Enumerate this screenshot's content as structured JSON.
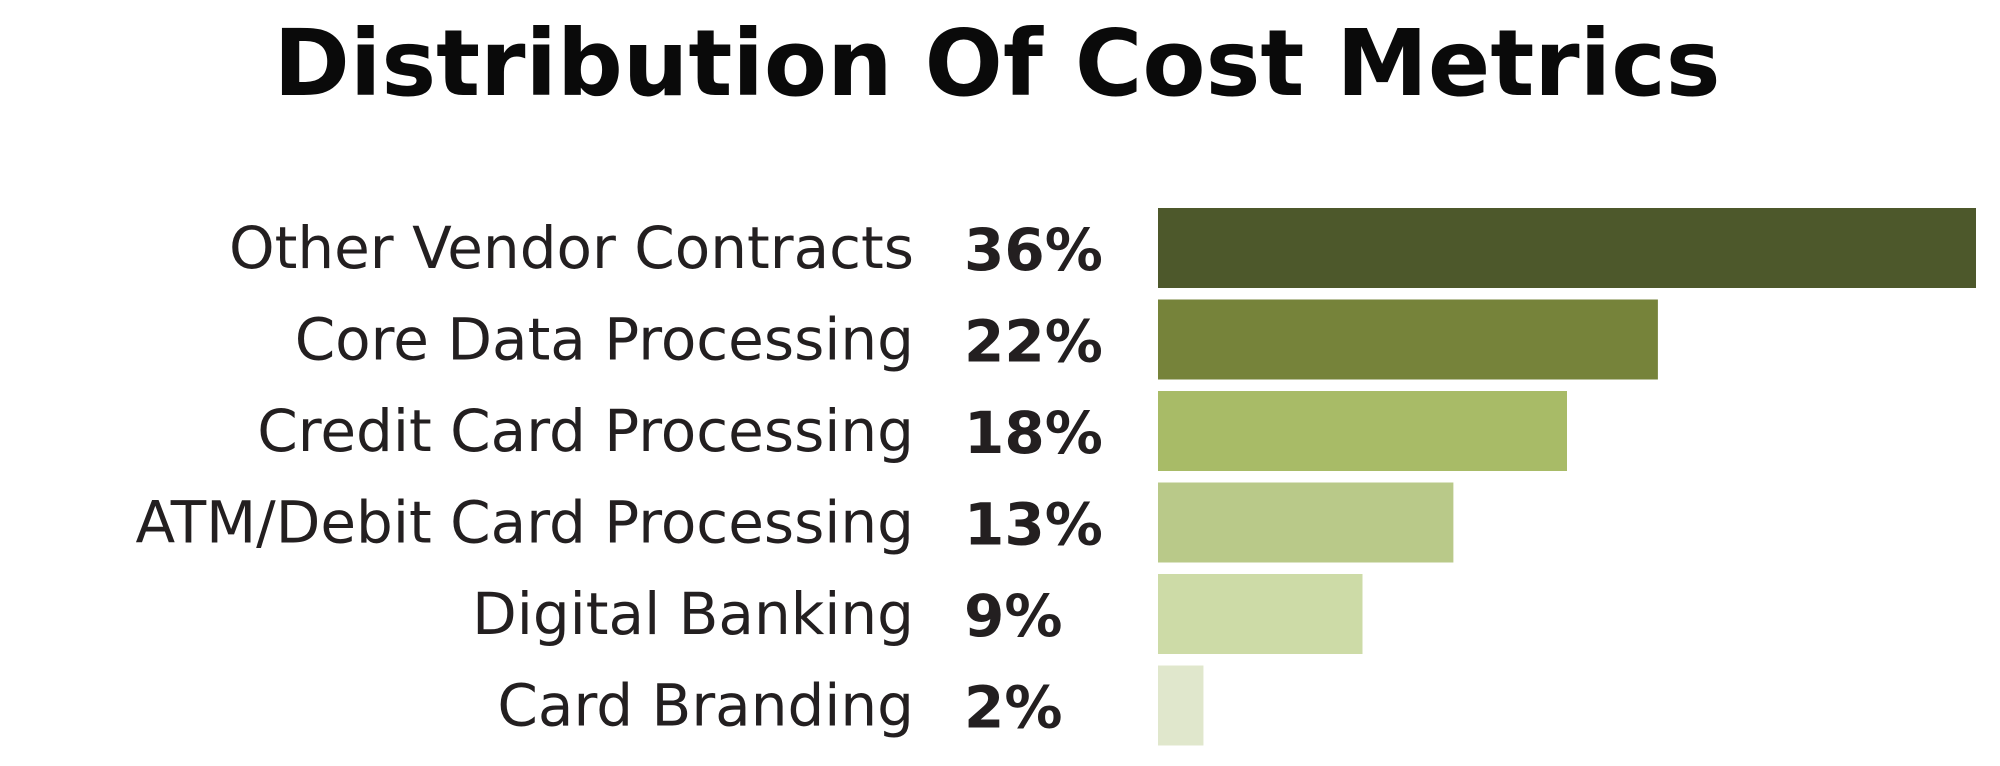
{
  "chart_data": {
    "type": "bar",
    "orientation": "horizontal",
    "title": "Distribution Of Cost Metrics",
    "categories": [
      "Other Vendor Contracts",
      "Core Data Processing",
      "Credit Card Processing",
      "ATM/Debit Card Processing",
      "Digital Banking",
      "Card Branding"
    ],
    "values": [
      36,
      22,
      18,
      13,
      9,
      2
    ],
    "value_labels": [
      "36%",
      "22%",
      "18%",
      "13%",
      "9%",
      "2%"
    ],
    "unit": "%",
    "xlim": [
      0,
      36
    ],
    "grid": false,
    "legend": "none",
    "colors": [
      "#4d582b",
      "#76833a",
      "#a8bb67",
      "#b9c989",
      "#cddba7",
      "#e0e7cc"
    ]
  }
}
